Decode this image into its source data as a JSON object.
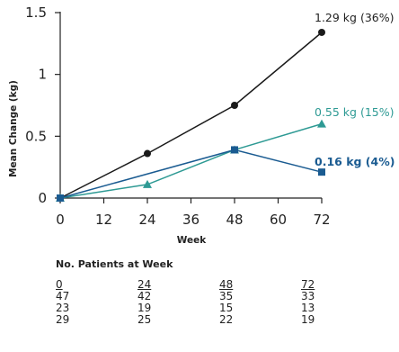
{
  "chart_data": {
    "type": "line",
    "title": "",
    "xlabel": "Week",
    "ylabel": "Mean Change (kg)",
    "xlim": [
      0,
      72
    ],
    "ylim": [
      0,
      1.5
    ],
    "xticks": [
      0,
      12,
      24,
      36,
      48,
      60,
      72
    ],
    "yticks": [
      0,
      0.5,
      1,
      1.5
    ],
    "ytick_labels": [
      "0",
      "0.5",
      "1",
      "1.5"
    ],
    "grid": false,
    "legend": "none",
    "series": [
      {
        "color": "#1a1a1a",
        "marker": "circle",
        "x": [
          0,
          24,
          48,
          72
        ],
        "y": [
          0,
          0.36,
          0.75,
          1.34
        ],
        "annotation": "1.29 kg (36%)",
        "annotation_bold": false
      },
      {
        "color": "#2e9a94",
        "marker": "triangle",
        "x": [
          0,
          24,
          48,
          72
        ],
        "y": [
          0,
          0.11,
          0.39,
          0.6
        ],
        "annotation": "0.55 kg (15%)",
        "annotation_bold": false
      },
      {
        "color": "#1a5b91",
        "marker": "square",
        "x": [
          0,
          48,
          72
        ],
        "y": [
          0,
          0.39,
          0.21
        ],
        "annotation": "0.16 kg (4%)",
        "annotation_bold": true
      }
    ]
  },
  "patients_table": {
    "title": "No. Patients at Week",
    "header": [
      "0",
      "24",
      "48",
      "72"
    ],
    "rows": [
      [
        "47",
        "42",
        "35",
        "33"
      ],
      [
        "23",
        "19",
        "15",
        "13"
      ],
      [
        "29",
        "25",
        "22",
        "19"
      ]
    ]
  }
}
